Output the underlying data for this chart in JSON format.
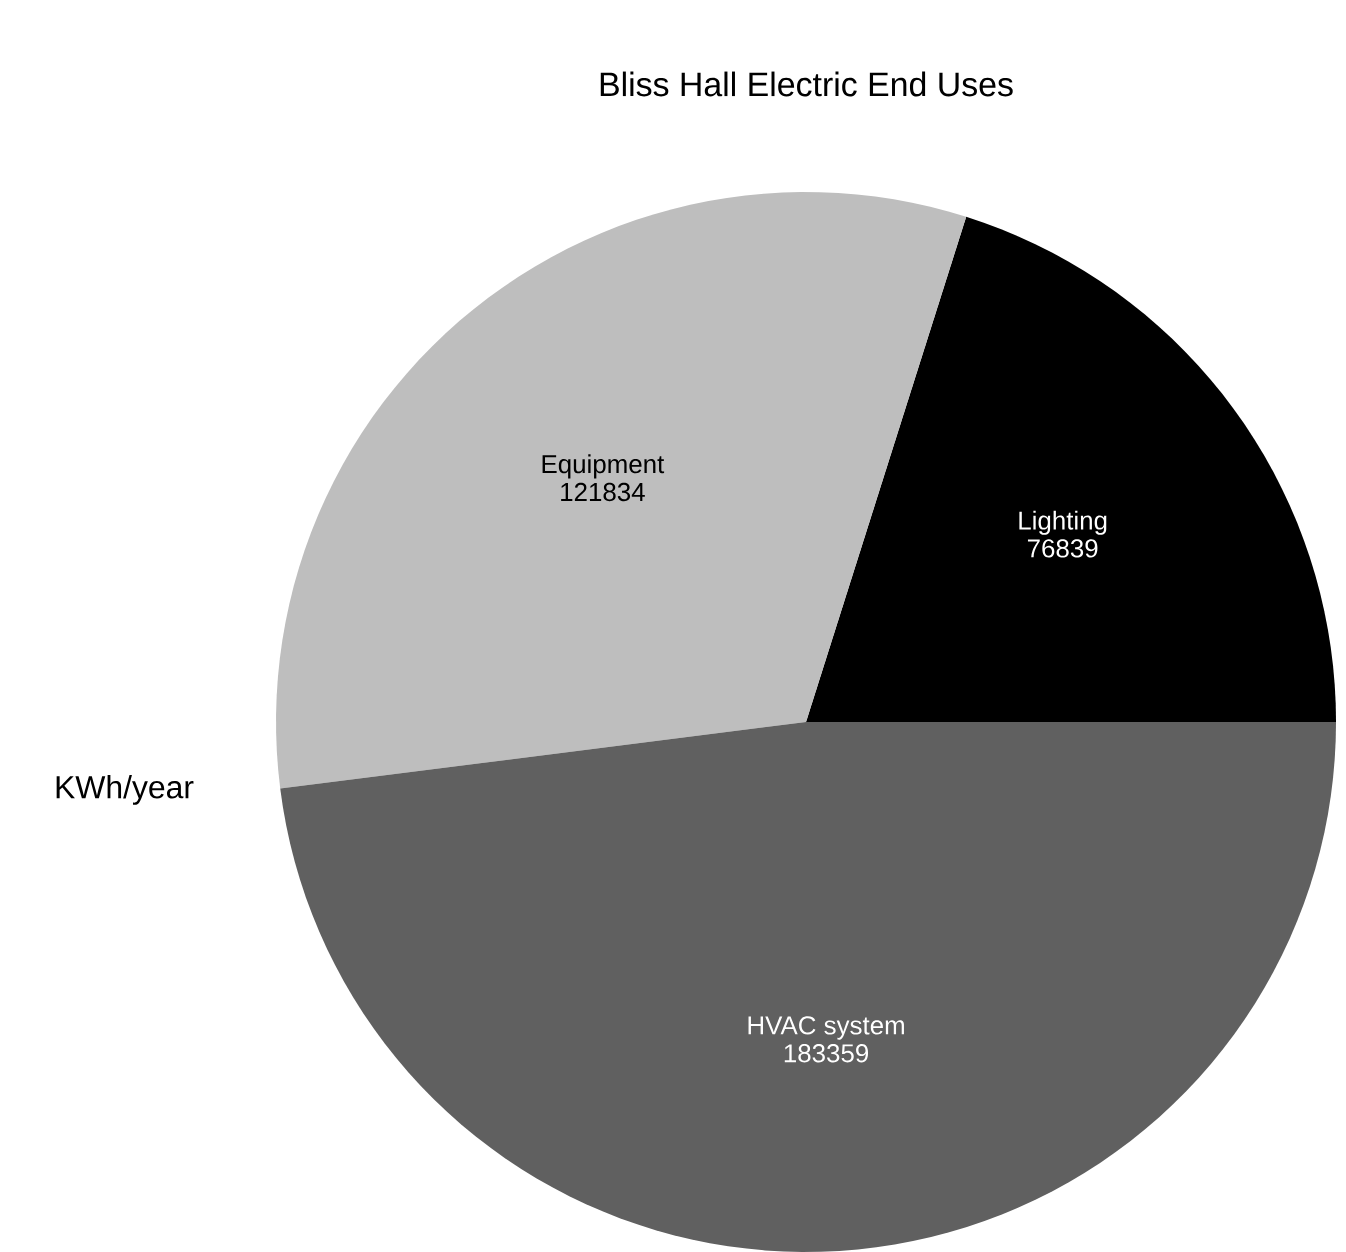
{
  "chart_data": {
    "type": "pie",
    "title": "Bliss Hall Electric End Uses",
    "ylabel": "KWh/year",
    "categories": [
      "Lighting",
      "Equipment",
      "HVAC system"
    ],
    "values": [
      76839,
      121834,
      183359
    ],
    "colors": [
      "#000000",
      "#bebebe",
      "#606060"
    ],
    "data_labels": true
  }
}
